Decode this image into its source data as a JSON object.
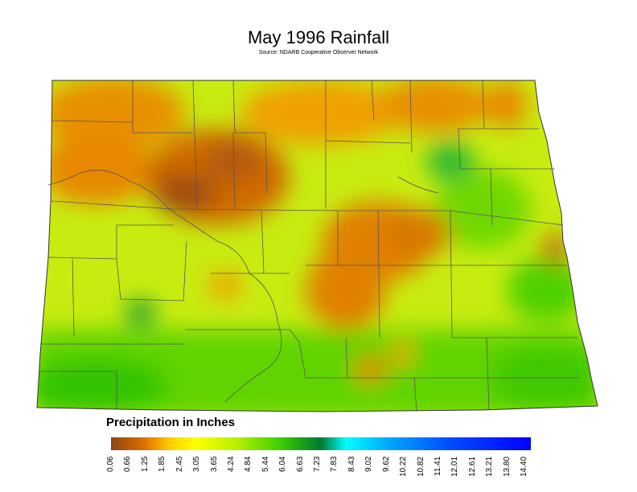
{
  "title": "May 1996 Rainfall",
  "source": "Source: NDARB Cooperative Observer Network",
  "legend": {
    "title": "Precipitation in Inches",
    "ticks": [
      "0.06",
      "0.66",
      "1.25",
      "1.85",
      "2.45",
      "3.05",
      "3.65",
      "4.24",
      "4.84",
      "5.44",
      "6.04",
      "6.63",
      "7.23",
      "7.83",
      "8.43",
      "9.02",
      "9.62",
      "10.22",
      "10.82",
      "11.41",
      "12.01",
      "12.61",
      "13.21",
      "13.80",
      "14.40"
    ],
    "colors": [
      "#8b4513",
      "#d2690a",
      "#f0a000",
      "#ffd800",
      "#ffff00",
      "#e0ff00",
      "#b8f000",
      "#90e800",
      "#60dc00",
      "#30cc00",
      "#10b800",
      "#089818",
      "#007a30",
      "#10a860",
      "#00ffff",
      "#00d8ff",
      "#00b0ff",
      "#0090ff",
      "#0070ff",
      "#0050ff",
      "#0030ff",
      "#0010ff",
      "#0000ff",
      "#0000f0",
      "#0000e0"
    ]
  }
}
